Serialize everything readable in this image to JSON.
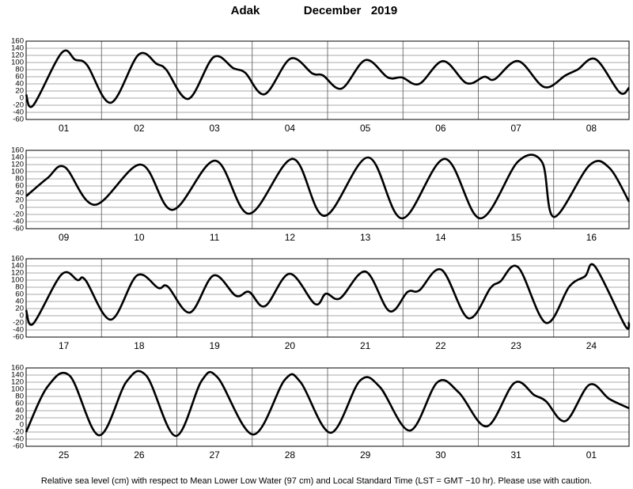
{
  "header": {
    "station": "Adak",
    "month": "December   2019"
  },
  "caption": "Relative sea level (cm) with respect to Mean Lower Low Water (97 cm) and Local Standard Time (LST = GMT −10 hr). Please use with caution.",
  "chart_data": [
    {
      "type": "line",
      "categories": [
        "01",
        "02",
        "03",
        "04",
        "05",
        "06",
        "07",
        "08"
      ],
      "x": [
        0,
        2.3,
        11.3,
        15.6,
        19.4,
        27,
        35.8,
        41.6,
        44.6,
        51.7,
        59.7,
        66,
        69.8,
        76,
        84.2,
        91.2,
        94.5,
        100.5,
        108.1,
        115.2,
        119.7,
        125.2,
        132.8,
        140.3,
        145.9,
        149.2,
        156.7,
        165,
        171.8,
        175.6,
        181.4,
        189,
        192
      ],
      "values": [
        10,
        -20,
        127,
        108,
        93,
        -13,
        122,
        96,
        80,
        -2,
        115,
        84,
        71,
        11,
        111,
        69,
        64,
        27,
        107,
        58,
        58,
        40,
        104,
        42,
        60,
        53,
        104,
        31,
        64,
        80,
        109,
        16,
        29
      ],
      "xlim": [
        0,
        192
      ],
      "ylim": [
        -60,
        160
      ],
      "yticks": [
        -60,
        -40,
        -20,
        0,
        20,
        40,
        60,
        80,
        100,
        120,
        140,
        160
      ],
      "color": "#000000",
      "grid": true
    },
    {
      "type": "line",
      "categories": [
        "09",
        "10",
        "11",
        "12",
        "13",
        "14",
        "15",
        "16"
      ],
      "x": [
        0,
        6.8,
        12.3,
        21.9,
        36.5,
        46.6,
        60.2,
        71,
        84.9,
        95,
        108.9,
        119.7,
        133.3,
        144.6,
        156.7,
        164.3,
        168.1,
        179.4,
        185.7,
        192
      ],
      "values": [
        31,
        82,
        113,
        7,
        120,
        -7,
        131,
        -18,
        136,
        -24,
        140,
        -31,
        136,
        -31,
        129,
        127,
        -27,
        118,
        111,
        16
      ],
      "xlim": [
        0,
        192
      ],
      "ylim": [
        -60,
        160
      ],
      "yticks": [
        -60,
        -40,
        -20,
        0,
        20,
        40,
        60,
        80,
        100,
        120,
        140,
        160
      ],
      "color": "#000000",
      "grid": true
    },
    {
      "type": "line",
      "categories": [
        "17",
        "18",
        "19",
        "20",
        "21",
        "22",
        "23",
        "24"
      ],
      "x": [
        0,
        2.3,
        11.3,
        16.4,
        18.9,
        27,
        35.3,
        42.1,
        45.1,
        52.2,
        59.7,
        66.8,
        71,
        76.1,
        83.9,
        92,
        95.5,
        100,
        108.1,
        115.7,
        121.5,
        125.2,
        132.3,
        140.8,
        147.9,
        151,
        156.7,
        165.5,
        173,
        178,
        181.2,
        190.7,
        192
      ],
      "values": [
        16,
        -22,
        116,
        100,
        100,
        -11,
        113,
        78,
        82,
        9,
        113,
        56,
        67,
        27,
        118,
        33,
        62,
        49,
        124,
        13,
        67,
        71,
        129,
        -7,
        78,
        96,
        136,
        -20,
        82,
        111,
        138,
        -27,
        -18
      ],
      "xlim": [
        0,
        192
      ],
      "ylim": [
        -60,
        160
      ],
      "yticks": [
        -60,
        -40,
        -20,
        0,
        20,
        40,
        60,
        80,
        100,
        120,
        140,
        160
      ],
      "color": "#000000",
      "grid": true
    },
    {
      "type": "line",
      "categories": [
        "25",
        "26",
        "27",
        "28",
        "29",
        "30",
        "31",
        "01"
      ],
      "x": [
        0,
        6.8,
        13.9,
        23.2,
        32,
        38.3,
        47.6,
        55.9,
        61,
        72.3,
        82.4,
        87.4,
        97,
        106.3,
        112.6,
        122.2,
        131,
        137.8,
        146.7,
        155.5,
        161.8,
        165.5,
        171.8,
        179.4,
        185.7,
        192
      ],
      "values": [
        -20,
        107,
        138,
        -29,
        122,
        138,
        -31,
        124,
        133,
        -27,
        127,
        120,
        -22,
        124,
        107,
        -16,
        120,
        91,
        -4,
        118,
        84,
        67,
        11,
        113,
        73,
        47
      ],
      "xlim": [
        0,
        192
      ],
      "ylim": [
        -60,
        160
      ],
      "yticks": [
        -60,
        -40,
        -20,
        0,
        20,
        40,
        60,
        80,
        100,
        120,
        140,
        160
      ],
      "color": "#000000",
      "grid": true
    }
  ]
}
